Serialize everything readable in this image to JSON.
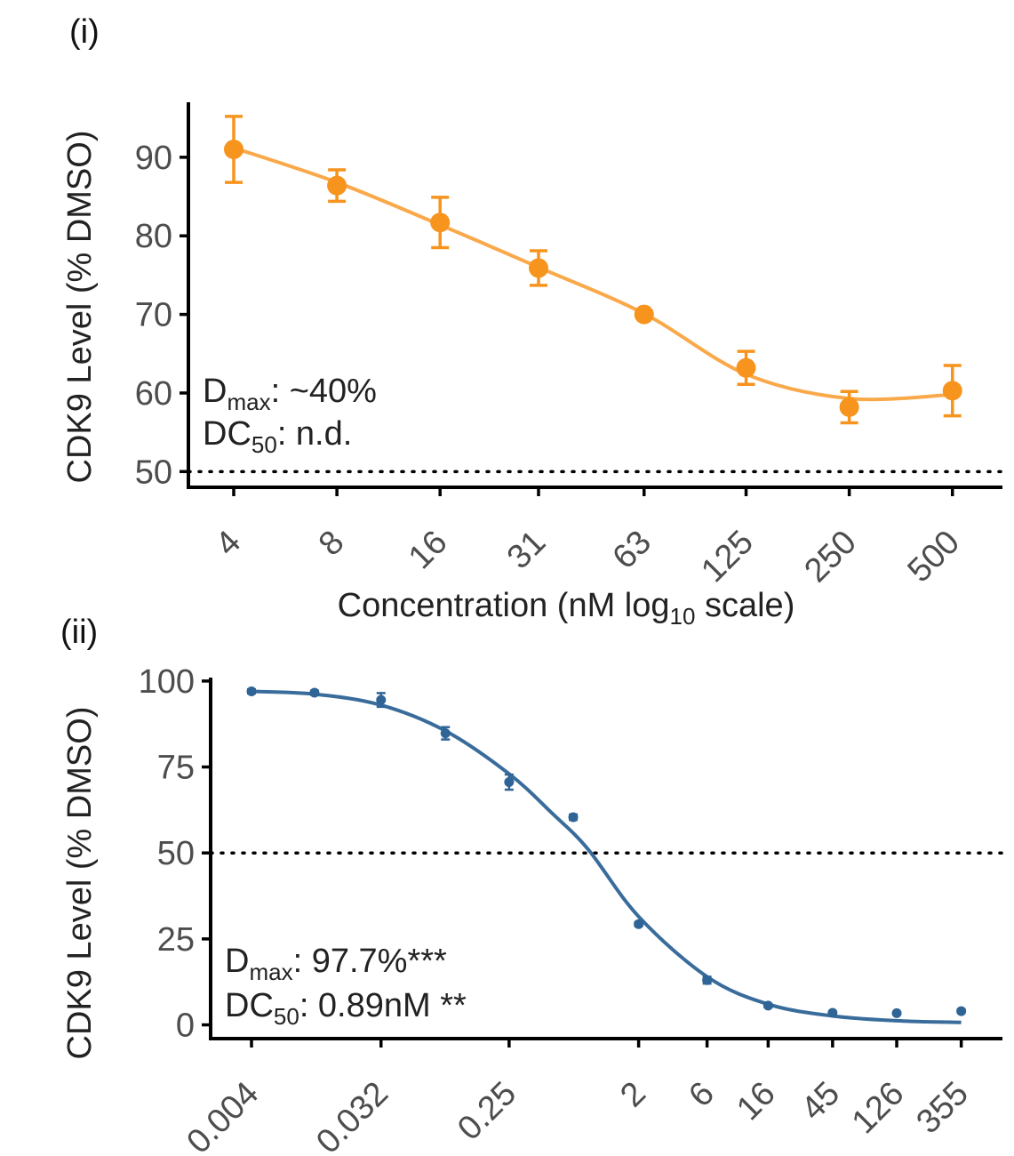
{
  "chart_data": [
    {
      "type": "scatter",
      "panel_label": "(i)",
      "color": "#f7941d",
      "ylabel": "CDK9 Level (% DMSO)",
      "xlabel": "Concentration (nM log",
      "xlabel_sub": "10",
      "xlabel_tail": " scale)",
      "x_scale": "log10",
      "ylim": [
        48,
        97
      ],
      "y_ticks": [
        90,
        80,
        70,
        60,
        50
      ],
      "x_tick_labels": [
        "4",
        "8",
        "16",
        "31",
        "63",
        "125",
        "250",
        "500"
      ],
      "points": [
        {
          "x": 4,
          "y": 91,
          "err": 4.2
        },
        {
          "x": 8,
          "y": 86.4,
          "err": 2.0
        },
        {
          "x": 16,
          "y": 81.7,
          "err": 3.2
        },
        {
          "x": 31,
          "y": 75.9,
          "err": 2.2
        },
        {
          "x": 63,
          "y": 70,
          "err": 0.4
        },
        {
          "x": 125,
          "y": 63.2,
          "err": 2.1
        },
        {
          "x": 250,
          "y": 58.2,
          "err": 2.0
        },
        {
          "x": 500,
          "y": 60.3,
          "err": 3.2
        }
      ],
      "fit_curve": [
        [
          4,
          91.2
        ],
        [
          8,
          86.8
        ],
        [
          16,
          81.4
        ],
        [
          31,
          76.0
        ],
        [
          63,
          70.1
        ],
        [
          125,
          62.4
        ],
        [
          250,
          59.3
        ],
        [
          500,
          59.8
        ]
      ],
      "reference_line": 50,
      "annotations": [
        {
          "main": "D",
          "sub": "max",
          "rest": ": ~40%"
        },
        {
          "main": "DC",
          "sub": "50",
          "rest": ": n.d."
        }
      ]
    },
    {
      "type": "scatter",
      "panel_label": "(ii)",
      "color": "#2e6496",
      "ylabel": "CDK9 Level (% DMSO)",
      "x_scale": "log10",
      "ylim": [
        -4,
        101
      ],
      "y_ticks": [
        100,
        75,
        50,
        25,
        0
      ],
      "x_tick_labels": [
        "0.004",
        "0.032",
        "0.25",
        "2",
        "6",
        "16",
        "45",
        "126",
        "355"
      ],
      "points": [
        {
          "x": 0.004,
          "y": 97.0,
          "err": 0.6
        },
        {
          "x": 0.011,
          "y": 96.6,
          "err": 0.6
        },
        {
          "x": 0.032,
          "y": 94.5,
          "err": 2.0
        },
        {
          "x": 0.09,
          "y": 84.8,
          "err": 1.8
        },
        {
          "x": 0.25,
          "y": 70.6,
          "err": 2.2
        },
        {
          "x": 0.7,
          "y": 60.4,
          "err": 0.8
        },
        {
          "x": 2,
          "y": 29.3,
          "err": 0.6
        },
        {
          "x": 6,
          "y": 13.0,
          "err": 1.0
        },
        {
          "x": 16,
          "y": 5.6,
          "err": 0.5
        },
        {
          "x": 45,
          "y": 3.5,
          "err": 0.4
        },
        {
          "x": 126,
          "y": 3.4,
          "err": 0.4
        },
        {
          "x": 355,
          "y": 4.0,
          "err": 0.5
        }
      ],
      "fit_curve": [
        [
          0.004,
          97.0
        ],
        [
          0.011,
          96.2
        ],
        [
          0.032,
          93.0
        ],
        [
          0.09,
          85.5
        ],
        [
          0.25,
          73.0
        ],
        [
          0.5,
          61.5
        ],
        [
          0.89,
          51.0
        ],
        [
          2,
          31.5
        ],
        [
          6,
          14.0
        ],
        [
          16,
          6.0
        ],
        [
          45,
          2.6
        ],
        [
          126,
          1.2
        ],
        [
          355,
          0.7
        ]
      ],
      "reference_line": 50,
      "annotations": [
        {
          "main": "D",
          "sub": "max",
          "rest": ": 97.7%***"
        },
        {
          "main": "DC",
          "sub": "50",
          "rest": ": 0.89nM **"
        }
      ]
    }
  ]
}
